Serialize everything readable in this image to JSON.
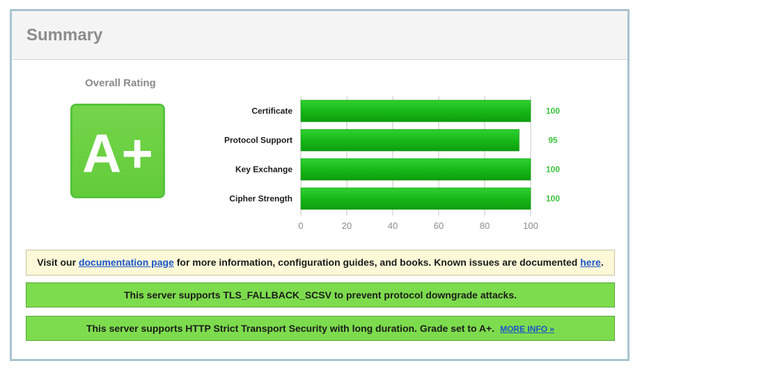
{
  "header": {
    "title": "Summary"
  },
  "rating": {
    "title": "Overall Rating",
    "grade": "A+",
    "color": "#6fd145"
  },
  "chart_data": {
    "type": "bar",
    "orientation": "horizontal",
    "categories": [
      "Certificate",
      "Protocol Support",
      "Key Exchange",
      "Cipher Strength"
    ],
    "values": [
      100,
      95,
      100,
      100
    ],
    "value_labels": [
      "100",
      "95",
      "100",
      "100"
    ],
    "xlim": [
      0,
      100
    ],
    "xticks": [
      "0",
      "20",
      "40",
      "60",
      "80",
      "100"
    ],
    "grid": true,
    "bar_color": "#19b919",
    "value_color": "#3cc23c"
  },
  "notices": {
    "docs": {
      "prefix": "Visit our ",
      "link1": "documentation page",
      "middle": " for more information, configuration guides, and books. Known issues are documented ",
      "link2": "here",
      "suffix": "."
    },
    "fallback": {
      "text": "This server supports TLS_FALLBACK_SCSV to prevent protocol downgrade attacks."
    },
    "hsts": {
      "text": "This server supports HTTP Strict Transport Security with long duration. Grade set to A+.",
      "link": "MORE INFO »"
    }
  }
}
